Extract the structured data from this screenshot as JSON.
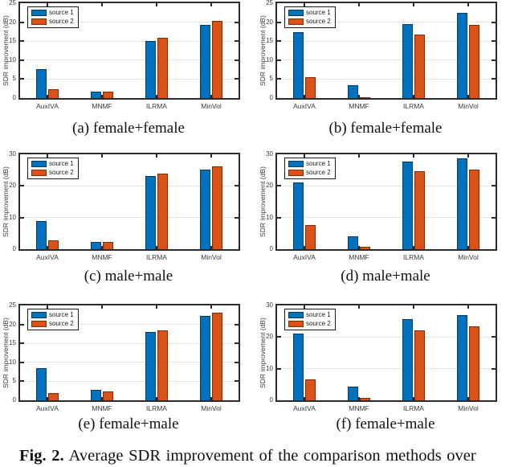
{
  "figure": {
    "caption_prefix": "Fig. 2.",
    "caption_text": "Average SDR improvement of the comparison methods over"
  },
  "colors": {
    "source1": "#0072BD",
    "source1_edge": "#0b3a5f",
    "source2": "#D95319",
    "source2_edge": "#7c2d0e",
    "axis": "#2b2b2b",
    "grid": "#e4e4e4"
  },
  "chart_data": [
    {
      "id": "a",
      "type": "bar",
      "caption": "(a) female+female",
      "categories": [
        "AuxIVA",
        "MNMF",
        "ILRMA",
        "MinVol"
      ],
      "series": [
        {
          "name": "source 1",
          "values": [
            7.7,
            1.6,
            15.0,
            19.2
          ]
        },
        {
          "name": "source 2",
          "values": [
            2.3,
            1.8,
            15.8,
            20.3
          ]
        }
      ],
      "ylabel": "SDR improvement (dB)",
      "ylim": [
        0,
        25
      ],
      "yticks": [
        0,
        5,
        10,
        15,
        20,
        25
      ],
      "grid": true,
      "legend_position": "top-left"
    },
    {
      "id": "b",
      "type": "bar",
      "caption": "(b) female+female",
      "categories": [
        "AuxIVA",
        "MNMF",
        "ILRMA",
        "MinVol"
      ],
      "series": [
        {
          "name": "source 1",
          "values": [
            17.4,
            3.4,
            19.5,
            22.5
          ]
        },
        {
          "name": "source 2",
          "values": [
            5.5,
            0.2,
            16.8,
            19.3
          ]
        }
      ],
      "ylabel": "SDR improvement (dB)",
      "ylim": [
        0,
        25
      ],
      "yticks": [
        0,
        5,
        10,
        15,
        20,
        25
      ],
      "grid": true,
      "legend_position": "top-left"
    },
    {
      "id": "c",
      "type": "bar",
      "caption": "(c) male+male",
      "categories": [
        "AuxIVA",
        "MNMF",
        "ILRMA",
        "MinVol"
      ],
      "series": [
        {
          "name": "source 1",
          "values": [
            8.9,
            2.2,
            23.1,
            25.1
          ]
        },
        {
          "name": "source 2",
          "values": [
            2.8,
            2.4,
            24.0,
            26.3
          ]
        }
      ],
      "ylabel": "SDR improvement (dB)",
      "ylim": [
        0,
        30
      ],
      "yticks": [
        0,
        10,
        20,
        30
      ],
      "grid": true,
      "legend_position": "top-left"
    },
    {
      "id": "d",
      "type": "bar",
      "caption": "(d) male+male",
      "categories": [
        "AuxIVA",
        "MNMF",
        "ILRMA",
        "MinVol"
      ],
      "series": [
        {
          "name": "source 1",
          "values": [
            21.1,
            4.1,
            27.8,
            28.7
          ]
        },
        {
          "name": "source 2",
          "values": [
            7.6,
            0.8,
            24.6,
            25.2
          ]
        }
      ],
      "ylabel": "SDR improvement (dB)",
      "ylim": [
        0,
        30
      ],
      "yticks": [
        0,
        10,
        20,
        30
      ],
      "grid": true,
      "legend_position": "top-left"
    },
    {
      "id": "e",
      "type": "bar",
      "caption": "(e) female+male",
      "categories": [
        "AuxIVA",
        "MNMF",
        "ILRMA",
        "MinVol"
      ],
      "series": [
        {
          "name": "source 1",
          "values": [
            8.4,
            2.7,
            18.1,
            22.2
          ]
        },
        {
          "name": "source 2",
          "values": [
            2.0,
            2.4,
            18.4,
            23.0
          ]
        }
      ],
      "ylabel": "SDR improvement (dB)",
      "ylim": [
        0,
        25
      ],
      "yticks": [
        0,
        5,
        10,
        15,
        20,
        25
      ],
      "grid": true,
      "legend_position": "top-left"
    },
    {
      "id": "f",
      "type": "bar",
      "caption": "(f) female+male",
      "categories": [
        "AuxIVA",
        "MNMF",
        "ILRMA",
        "MinVol"
      ],
      "series": [
        {
          "name": "source 1",
          "values": [
            21.0,
            4.3,
            25.6,
            27.0
          ]
        },
        {
          "name": "source 2",
          "values": [
            6.7,
            0.7,
            22.2,
            23.4
          ]
        }
      ],
      "ylabel": "SDR improvement (dB)",
      "ylim": [
        0,
        30
      ],
      "yticks": [
        0,
        10,
        20,
        30
      ],
      "grid": true,
      "legend_position": "top-left"
    }
  ]
}
